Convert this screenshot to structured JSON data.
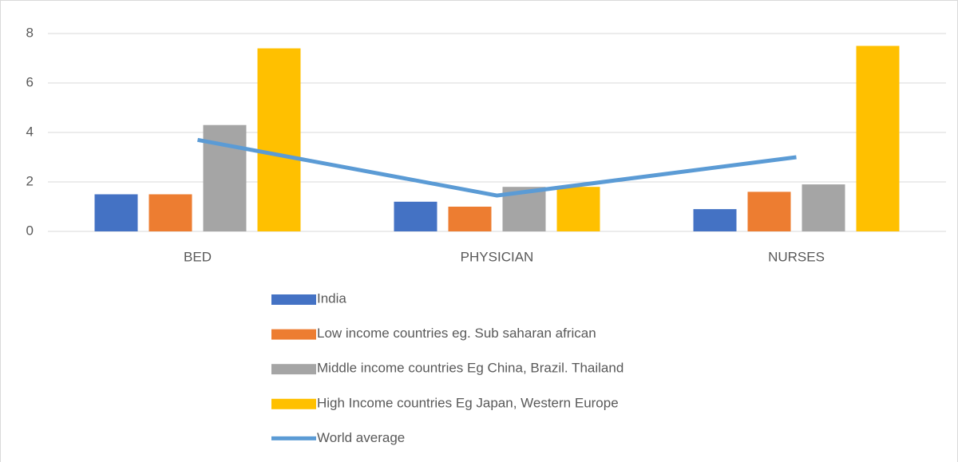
{
  "chart_data": {
    "type": "bar",
    "categories": [
      "BED",
      "PHYSICIAN",
      "NURSES"
    ],
    "series": [
      {
        "name": "India",
        "color": "#4472c4",
        "values": [
          1.5,
          1.2,
          0.9
        ]
      },
      {
        "name": "Low income countries eg. Sub saharan african",
        "color": "#ed7d31",
        "values": [
          1.5,
          1.0,
          1.6
        ]
      },
      {
        "name": "Middle income countries Eg China, Brazil. Thailand",
        "color": "#a5a5a5",
        "values": [
          4.3,
          1.8,
          1.9
        ]
      },
      {
        "name": "High Income countries Eg Japan, Western Europe",
        "color": "#ffc000",
        "values": [
          7.4,
          1.8,
          7.5
        ]
      },
      {
        "name": "World average",
        "color": "#5b9bd5",
        "type": "line",
        "values": [
          3.7,
          1.45,
          3.0
        ]
      }
    ],
    "ylim": [
      0,
      8
    ],
    "yticks": [
      0,
      2,
      4,
      6,
      8
    ],
    "grid": true,
    "legend": "bottom"
  }
}
